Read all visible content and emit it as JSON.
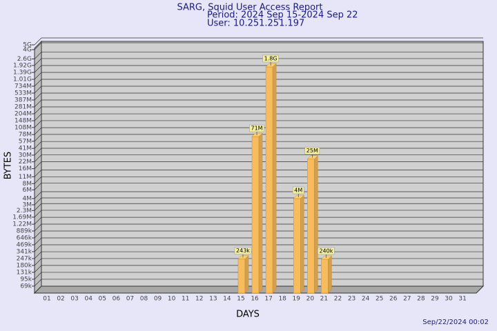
{
  "chart_data": {
    "type": "bar",
    "title": "SARG, Squid User Access Report",
    "subtitles": [
      "Period: 2024 Sep 15-2024 Sep 22",
      "User: 10.251.251.197"
    ],
    "xlabel": "DAYS",
    "ylabel": "BYTES",
    "footer": "Sep/22/2024 00:02",
    "categories": [
      "01",
      "02",
      "03",
      "04",
      "05",
      "06",
      "07",
      "08",
      "09",
      "10",
      "11",
      "12",
      "13",
      "14",
      "15",
      "16",
      "17",
      "18",
      "19",
      "20",
      "21",
      "22",
      "23",
      "24",
      "25",
      "26",
      "27",
      "28",
      "29",
      "30",
      "31"
    ],
    "values": [
      null,
      null,
      null,
      null,
      null,
      null,
      null,
      null,
      null,
      null,
      null,
      null,
      null,
      null,
      243000,
      71000000,
      1800000000,
      null,
      4000000,
      25000000,
      240000,
      null,
      null,
      null,
      null,
      null,
      null,
      null,
      null,
      null,
      null
    ],
    "value_labels": [
      null,
      null,
      null,
      null,
      null,
      null,
      null,
      null,
      null,
      null,
      null,
      null,
      null,
      null,
      "243k",
      "71M",
      "1.8G",
      null,
      "4M",
      "25M",
      "240k",
      null,
      null,
      null,
      null,
      null,
      null,
      null,
      null,
      null,
      null
    ],
    "color": "#f7bc5e",
    "log_scale": true,
    "grid": true,
    "ylim": [
      50000,
      5000000000
    ],
    "yticks": [
      {
        "value": 69000,
        "label": "69k"
      },
      {
        "value": 95000,
        "label": "95k"
      },
      {
        "value": 131000,
        "label": "131k"
      },
      {
        "value": 180000,
        "label": "180k"
      },
      {
        "value": 247000,
        "label": "247k"
      },
      {
        "value": 341000,
        "label": "341k"
      },
      {
        "value": 469000,
        "label": "469k"
      },
      {
        "value": 646000,
        "label": "646k"
      },
      {
        "value": 889000,
        "label": "889k"
      },
      {
        "value": 1220000,
        "label": "1.22M"
      },
      {
        "value": 1690000,
        "label": "1.69M"
      },
      {
        "value": 2300000,
        "label": "2.3M"
      },
      {
        "value": 3000000,
        "label": "3M"
      },
      {
        "value": 4000000,
        "label": "4M"
      },
      {
        "value": 6000000,
        "label": "6M"
      },
      {
        "value": 8000000,
        "label": "8M"
      },
      {
        "value": 11000000,
        "label": "11M"
      },
      {
        "value": 16000000,
        "label": "16M"
      },
      {
        "value": 22000000,
        "label": "22M"
      },
      {
        "value": 30000000,
        "label": "30M"
      },
      {
        "value": 41000000,
        "label": "41M"
      },
      {
        "value": 57000000,
        "label": "57M"
      },
      {
        "value": 78000000,
        "label": "78M"
      },
      {
        "value": 108000000,
        "label": "108M"
      },
      {
        "value": 148000000,
        "label": "148M"
      },
      {
        "value": 204000000,
        "label": "204M"
      },
      {
        "value": 281000000,
        "label": "281M"
      },
      {
        "value": 387000000,
        "label": "387M"
      },
      {
        "value": 533000000,
        "label": "533M"
      },
      {
        "value": 734000000,
        "label": "734M"
      },
      {
        "value": 1010000000,
        "label": "1.01G"
      },
      {
        "value": 1390000000,
        "label": "1.39G"
      },
      {
        "value": 1920000000,
        "label": "1.92G"
      },
      {
        "value": 2600000000,
        "label": "2.6G"
      },
      {
        "value": 4000000000,
        "label": "4G"
      },
      {
        "value": 5000000000,
        "label": "5G"
      }
    ]
  }
}
